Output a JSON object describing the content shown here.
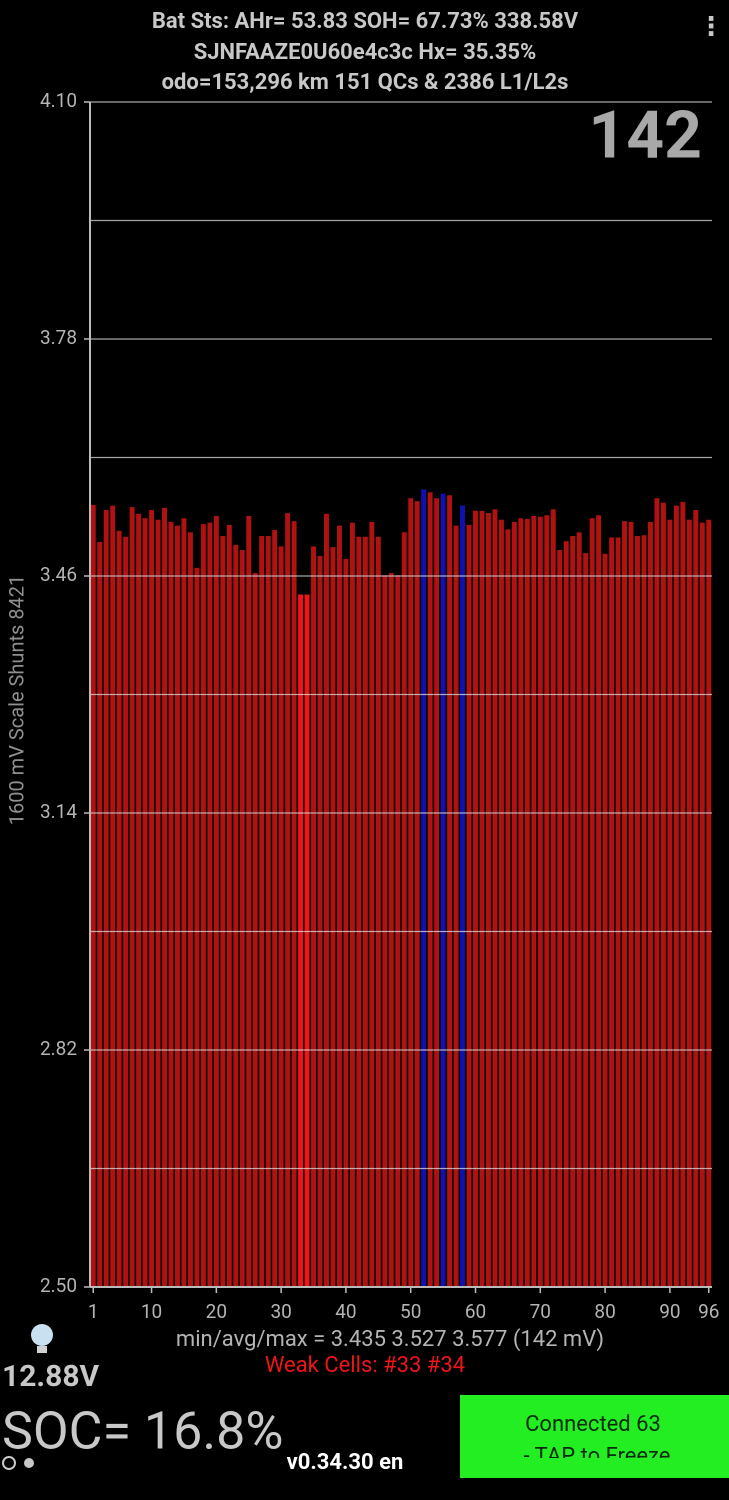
{
  "header": {
    "line1": "Bat Sts:  AHr= 53.83  SOH= 67.73%   338.58V",
    "line2": "SJNFAAZE0U60e4c3c   Hx= 35.35%",
    "line3": "odo=153,296 km  151 QCs & 2386 L1/L2s",
    "menu": "⋮"
  },
  "chart_data": {
    "type": "bar",
    "corner_label": "142",
    "ylabel": "1600 mV Scale   Shunts 8421",
    "x": [
      1,
      2,
      3,
      4,
      5,
      6,
      7,
      8,
      9,
      10,
      11,
      12,
      13,
      14,
      15,
      16,
      17,
      18,
      19,
      20,
      21,
      22,
      23,
      24,
      25,
      26,
      27,
      28,
      29,
      30,
      31,
      32,
      33,
      34,
      35,
      36,
      37,
      38,
      39,
      40,
      41,
      42,
      43,
      44,
      45,
      46,
      47,
      48,
      49,
      50,
      51,
      52,
      53,
      54,
      55,
      56,
      57,
      58,
      59,
      60,
      61,
      62,
      63,
      64,
      65,
      66,
      67,
      68,
      69,
      70,
      71,
      72,
      73,
      74,
      75,
      76,
      77,
      78,
      79,
      80,
      81,
      82,
      83,
      84,
      85,
      86,
      87,
      88,
      89,
      90,
      91,
      92,
      93,
      94,
      95,
      96
    ],
    "values": [
      3.556,
      3.506,
      3.549,
      3.555,
      3.521,
      3.513,
      3.553,
      3.544,
      3.538,
      3.549,
      3.536,
      3.552,
      3.533,
      3.528,
      3.538,
      3.519,
      3.471,
      3.53,
      3.532,
      3.541,
      3.514,
      3.529,
      3.502,
      3.495,
      3.541,
      3.464,
      3.514,
      3.514,
      3.522,
      3.5,
      3.545,
      3.534,
      3.435,
      3.435,
      3.5,
      3.487,
      3.544,
      3.499,
      3.528,
      3.483,
      3.532,
      3.513,
      3.513,
      3.533,
      3.513,
      3.461,
      3.464,
      3.461,
      3.519,
      3.565,
      3.561,
      3.577,
      3.573,
      3.565,
      3.571,
      3.569,
      3.528,
      3.555,
      3.529,
      3.548,
      3.548,
      3.545,
      3.55,
      3.536,
      3.523,
      3.533,
      3.538,
      3.537,
      3.541,
      3.54,
      3.542,
      3.55,
      3.495,
      3.507,
      3.514,
      3.519,
      3.491,
      3.538,
      3.542,
      3.49,
      3.512,
      3.512,
      3.534,
      3.533,
      3.514,
      3.515,
      3.533,
      3.565,
      3.559,
      3.536,
      3.555,
      3.56,
      3.536,
      3.549,
      3.532,
      3.536
    ],
    "bar_colors": [
      "#b01212",
      "#b01212",
      "#b01212",
      "#b01212",
      "#b01212",
      "#b01212",
      "#b01212",
      "#b01212",
      "#b01212",
      "#b01212",
      "#b01212",
      "#b01212",
      "#b01212",
      "#b01212",
      "#b01212",
      "#b01212",
      "#b01212",
      "#b01212",
      "#b01212",
      "#b01212",
      "#b01212",
      "#b01212",
      "#b01212",
      "#b01212",
      "#b01212",
      "#b01212",
      "#b01212",
      "#b01212",
      "#b01212",
      "#b01212",
      "#b01212",
      "#b01212",
      "#f01418",
      "#f01418",
      "#b01212",
      "#b01212",
      "#b01212",
      "#b01212",
      "#b01212",
      "#b01212",
      "#b01212",
      "#b01212",
      "#b01212",
      "#b01212",
      "#b01212",
      "#b01212",
      "#b01212",
      "#b01212",
      "#b01212",
      "#b01212",
      "#b01212",
      "#1010b0",
      "#b01212",
      "#b01212",
      "#1010b0",
      "#b01212",
      "#b01212",
      "#1010b0",
      "#b01212",
      "#b01212",
      "#b01212",
      "#b01212",
      "#b01212",
      "#b01212",
      "#b01212",
      "#b01212",
      "#b01212",
      "#b01212",
      "#b01212",
      "#b01212",
      "#b01212",
      "#b01212",
      "#b01212",
      "#b01212",
      "#b01212",
      "#b01212",
      "#b01212",
      "#b01212",
      "#b01212",
      "#b01212",
      "#b01212",
      "#b01212",
      "#b01212",
      "#b01212",
      "#b01212",
      "#b01212",
      "#b01212",
      "#b01212",
      "#b01212",
      "#b01212",
      "#b01212",
      "#b01212",
      "#b01212",
      "#b01212",
      "#b01212",
      "#b01212"
    ],
    "xlim": [
      0.5,
      96.5
    ],
    "xticks": [
      1,
      10,
      20,
      30,
      40,
      50,
      60,
      70,
      80,
      90,
      96
    ],
    "ylim": [
      2.5,
      4.1
    ],
    "yticks": [
      {
        "value": 2.5,
        "label": "2.50"
      },
      {
        "value": 2.82,
        "label": "2.82"
      },
      {
        "value": 3.14,
        "label": "3.14"
      },
      {
        "value": 3.46,
        "label": "3.46"
      },
      {
        "value": 3.78,
        "label": "3.78"
      },
      {
        "value": 4.1,
        "label": "4.10"
      }
    ],
    "minor_yticks": [
      2.66,
      2.98,
      3.3,
      3.62,
      3.94
    ],
    "grid": true
  },
  "footer": {
    "stats": "min/avg/max = 3.435 3.527 3.577  (142 mV)",
    "weak_cells": "Weak Cells:  #33 #34",
    "aux_voltage": "12.88V",
    "soc": "SOC= 16.8%",
    "version": "v0.34.30 en",
    "status_line1": "Connected 63",
    "status_line2": "- TAP to Freeze"
  }
}
